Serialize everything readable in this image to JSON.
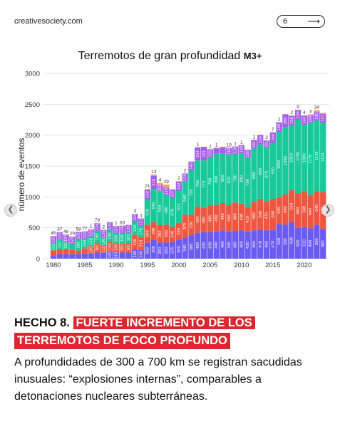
{
  "header": {
    "site": "creativesociety.com",
    "page_number": "6",
    "next_arrow": "⟶"
  },
  "fact": {
    "label": "HECHO 8.",
    "line1": "FUERTE INCREMENTO DE LOS",
    "line2": "TERREMOTOS DE FOCO PROFUNDO",
    "body": "A profundidades de 300 a 700 km se registran sacudidas inusuales: “explosiones internas”, comparables a detonaciones nucleares subterráneas."
  },
  "chart_data": {
    "type": "bar",
    "stacked": true,
    "title": "Terremotos de gran profundidad",
    "title_suffix": "M3+",
    "ylabel": "número de eventos",
    "xlabel": "",
    "ylim": [
      0,
      3000
    ],
    "xlim": [
      1978.3,
      2024
    ],
    "yticks": [
      0,
      500,
      1000,
      1500,
      2000,
      2500,
      3000
    ],
    "xticks": [
      1980,
      1985,
      1990,
      1995,
      2000,
      2005,
      2010,
      2015,
      2020
    ],
    "grid": true,
    "legend": "none",
    "colors": [
      "#6a5cf2",
      "#ee5640",
      "#19c99a",
      "#a55ee8",
      "#f3a15e"
    ],
    "x": [
      1980,
      1981,
      1982,
      1983,
      1984,
      1985,
      1986,
      1987,
      1988,
      1989,
      1990,
      1991,
      1992,
      1993,
      1994,
      1995,
      1996,
      1997,
      1998,
      1999,
      2000,
      2001,
      2002,
      2003,
      2004,
      2005,
      2006,
      2007,
      2008,
      2009,
      2010,
      2011,
      2012,
      2013,
      2014,
      2015,
      2016,
      2017,
      2018,
      2019,
      2020,
      2021,
      2022,
      2023
    ],
    "series": [
      {
        "values": [
          45,
          76,
          79,
          72,
          76,
          82,
          84,
          98,
          97,
          120,
          110,
          100,
          97,
          150,
          140,
          258,
          300,
          260,
          260,
          275,
          300,
          340,
          380,
          420,
          430,
          430,
          440,
          460,
          440,
          450,
          460,
          430,
          460,
          470,
          460,
          470,
          560,
          550,
          590,
          500,
          510,
          490,
          550,
          480
        ]
      },
      {
        "values": [
          90,
          76,
          77,
          69,
          55,
          88,
          120,
          160,
          111,
          150,
          136,
          150,
          160,
          240,
          210,
          289,
          290,
          282,
          290,
          240,
          280,
          370,
          330,
          420,
          390,
          430,
          430,
          440,
          430,
          460,
          430,
          410,
          460,
          500,
          470,
          500,
          440,
          490,
          518,
          560,
          580,
          540,
          540,
          600
        ]
      },
      {
        "values": [
          112,
          157,
          110,
          94,
          180,
          150,
          148,
          190,
          130,
          196,
          160,
          158,
          163,
          210,
          176,
          410,
          540,
          544,
          480,
          470,
          522,
          540,
          720,
          750,
          770,
          780,
          830,
          800,
          810,
          790,
          810,
          790,
          860,
          880,
          870,
          910,
          1050,
          1090,
          1050,
          1190,
          1080,
          1170,
          1148,
          1124
        ]
      },
      {
        "values": [
          120,
          122,
          124,
          123,
          121,
          122,
          123,
          124,
          128,
          125,
          123,
          126,
          125,
          124,
          121,
          159,
          213,
          110,
          118,
          137,
          142,
          129,
          142,
          214,
          221,
          131,
          93,
          100,
          116,
          116,
          140,
          135,
          141,
          154,
          111,
          164,
          158,
          208,
          158,
          158,
          144,
          124,
          135,
          141
        ]
      },
      {
        "values": [
          1,
          2,
          3,
          3,
          2,
          2,
          3,
          3,
          2,
          1,
          3,
          2,
          5,
          2,
          7,
          13,
          21,
          31,
          52,
          0,
          13,
          1,
          1,
          1,
          1,
          2,
          1,
          14,
          1,
          2,
          1,
          1,
          2,
          2,
          7,
          3,
          2,
          2,
          2,
          4,
          8,
          11,
          34,
          16
        ]
      }
    ],
    "top_labels": [
      "45",
      "37",
      "46",
      "29",
      "58",
      "77",
      "1",
      "79",
      "2",
      "",
      "1",
      "63",
      "",
      "3",
      "1",
      "21",
      "13",
      "4",
      "29",
      "",
      "2",
      "2",
      "",
      "1",
      "",
      "2",
      "1",
      "",
      "19",
      "1",
      "1",
      "",
      "1",
      "",
      "2",
      "7",
      "2",
      "",
      "2",
      "9",
      "4",
      "3",
      "34",
      ""
    ]
  }
}
